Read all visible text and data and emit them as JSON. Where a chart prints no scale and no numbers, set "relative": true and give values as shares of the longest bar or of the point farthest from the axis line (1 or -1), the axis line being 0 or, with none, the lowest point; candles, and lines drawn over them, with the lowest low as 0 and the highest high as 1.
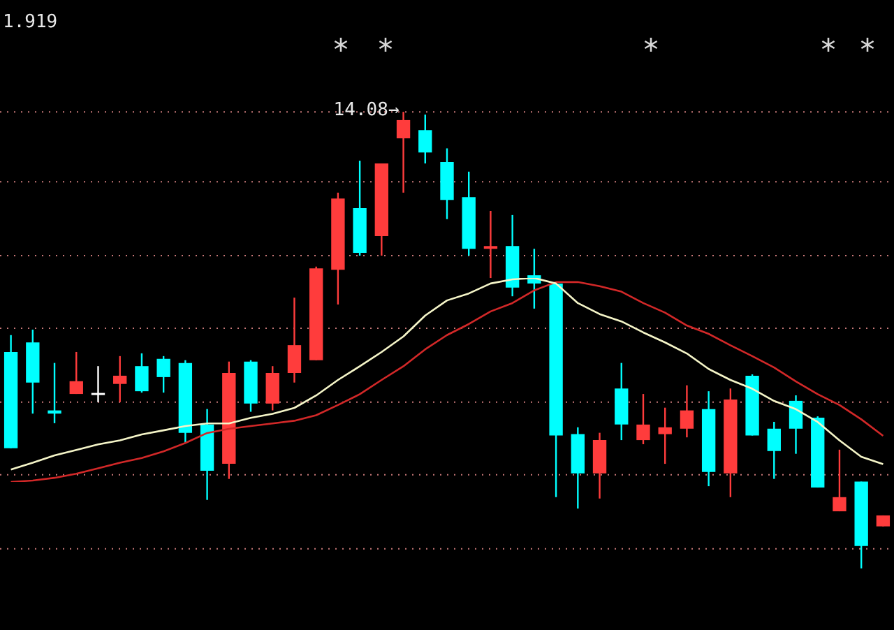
{
  "chart_data": [
    {
      "type": "candlestick",
      "relative": true,
      "ref_lines": [
        {
          "axis": "y",
          "value": 1,
          "color": "#c87878",
          "line_style": "dotted"
        },
        {
          "axis": "y",
          "value": 0.847,
          "color": "#c87878",
          "line_style": "dotted"
        },
        {
          "axis": "y",
          "value": 0.685,
          "color": "#c87878",
          "line_style": "dotted"
        },
        {
          "axis": "y",
          "value": 0.526,
          "color": "#c87878",
          "line_style": "dotted"
        },
        {
          "axis": "y",
          "value": 0.364,
          "color": "#c87878",
          "line_style": "dotted"
        },
        {
          "axis": "y",
          "value": 0.205,
          "color": "#c87878",
          "line_style": "dotted"
        },
        {
          "axis": "y",
          "value": 0.043,
          "color": "#c87878",
          "line_style": "dotted"
        }
      ],
      "categories": [
        null,
        null,
        null,
        null,
        null,
        null,
        null,
        null,
        null,
        null,
        null,
        null,
        null,
        null,
        null,
        null,
        null,
        null,
        null,
        null,
        null,
        null,
        null,
        null,
        null,
        null,
        null,
        null,
        null,
        null,
        null,
        null,
        null,
        null,
        null,
        null,
        null,
        null,
        null,
        null,
        null
      ],
      "ohlc": [
        [
          0.474,
          0.511,
          0.263,
          0.263
        ],
        [
          0.495,
          0.523,
          0.339,
          0.407
        ],
        [
          0.346,
          0.45,
          0.318,
          0.339
        ],
        [
          0.382,
          0.474,
          0.382,
          0.41
        ],
        [
          0.382,
          0.443,
          0.364,
          0.382
        ],
        [
          0.404,
          0.465,
          0.364,
          0.422
        ],
        [
          0.443,
          0.471,
          0.385,
          0.388
        ],
        [
          0.459,
          0.465,
          0.385,
          0.419
        ],
        [
          0.45,
          0.456,
          0.275,
          0.297
        ],
        [
          0.315,
          0.349,
          0.15,
          0.214
        ],
        [
          0.229,
          0.453,
          0.196,
          0.428
        ],
        [
          0.453,
          0.456,
          0.343,
          0.361
        ],
        [
          0.361,
          0.443,
          0.346,
          0.428
        ],
        [
          0.428,
          0.593,
          0.407,
          0.489
        ],
        [
          0.456,
          0.661,
          0.456,
          0.657
        ],
        [
          0.654,
          0.823,
          0.578,
          0.81
        ],
        [
          0.789,
          0.893,
          0.685,
          0.691
        ],
        [
          0.728,
          0.887,
          0.685,
          0.887
        ],
        [
          0.942,
          1,
          0.823,
          0.982
        ],
        [
          0.96,
          0.994,
          0.887,
          0.911
        ],
        [
          0.89,
          0.92,
          0.765,
          0.807
        ],
        [
          0.813,
          0.869,
          0.685,
          0.7
        ],
        [
          0.7,
          0.783,
          0.636,
          0.706
        ],
        [
          0.706,
          0.774,
          0.596,
          0.615
        ],
        [
          0.642,
          0.7,
          0.569,
          0.624
        ],
        [
          0.624,
          0.624,
          0.156,
          0.291
        ],
        [
          0.294,
          0.309,
          0.131,
          0.208
        ],
        [
          0.208,
          0.297,
          0.153,
          0.281
        ],
        [
          0.394,
          0.45,
          0.281,
          0.315
        ],
        [
          0.281,
          0.382,
          0.272,
          0.315
        ],
        [
          0.294,
          0.352,
          0.229,
          0.309
        ],
        [
          0.306,
          0.401,
          0.287,
          0.346
        ],
        [
          0.349,
          0.388,
          0.18,
          0.211
        ],
        [
          0.208,
          0.394,
          0.156,
          0.37
        ],
        [
          0.422,
          0.425,
          0.291,
          0.291
        ],
        [
          0.306,
          0.321,
          0.196,
          0.257
        ],
        [
          0.367,
          0.379,
          0.251,
          0.306
        ],
        [
          0.33,
          0.333,
          0.177,
          0.177
        ],
        [
          0.125,
          0.26,
          0.125,
          0.156
        ],
        [
          0.19,
          0.19,
          0,
          0.049
        ],
        [
          0.092,
          0.116,
          0.092,
          0.116
        ]
      ],
      "colors": [
        "#00ffff",
        "#00ffff",
        "#00ffff",
        "#ff3c3c",
        "#ffffff",
        "#ff3c3c",
        "#00ffff",
        "#00ffff",
        "#00ffff",
        "#00ffff",
        "#ff3c3c",
        "#00ffff",
        "#ff3c3c",
        "#ff3c3c",
        "#ff3c3c",
        "#ff3c3c",
        "#00ffff",
        "#ff3c3c",
        "#ff3c3c",
        "#00ffff",
        "#00ffff",
        "#00ffff",
        "#ff3c3c",
        "#00ffff",
        "#00ffff",
        "#00ffff",
        "#00ffff",
        "#ff3c3c",
        "#00ffff",
        "#ff3c3c",
        "#ff3c3c",
        "#ff3c3c",
        "#00ffff",
        "#ff3c3c",
        "#00ffff",
        "#00ffff",
        "#00ffff",
        "#00ffff",
        "#ff3c3c",
        "#00ffff",
        "#ff3c3c"
      ],
      "annotations": [
        "1.919",
        "14.08→"
      ]
    },
    {
      "type": "line",
      "relative": true,
      "categories": [
        null,
        null,
        null,
        null,
        null,
        null,
        null,
        null,
        null,
        null,
        null,
        null,
        null,
        null,
        null,
        null,
        null,
        null,
        null,
        null,
        null,
        null,
        null,
        null,
        null,
        null,
        null,
        null,
        null,
        null,
        null,
        null,
        null,
        null,
        null,
        null,
        null,
        null,
        null,
        null,
        null
      ],
      "series": [
        {
          "color": "#f5f5c8",
          "values": [
            0.061,
            0.094,
            0.13,
            0.157,
            0.184,
            0.204,
            0.233,
            0.253,
            0.274,
            0.287,
            0.287,
            0.314,
            0.334,
            0.363,
            0.424,
            0.5,
            0.567,
            0.637,
            0.713,
            0.816,
            0.89,
            0.924,
            0.973,
            0.993,
            1,
            0.973,
            0.877,
            0.823,
            0.787,
            0.733,
            0.684,
            0.63,
            0.554,
            0.5,
            0.457,
            0.397,
            0.357,
            0.294,
            0.204,
            0.123,
            0.087
          ]
        },
        {
          "color": "#d22828",
          "values": [
            0,
            0.007,
            0.02,
            0.04,
            0.067,
            0.094,
            0.117,
            0.15,
            0.191,
            0.24,
            0.26,
            0.274,
            0.287,
            0.3,
            0.327,
            0.377,
            0.43,
            0.5,
            0.567,
            0.65,
            0.72,
            0.774,
            0.836,
            0.877,
            0.939,
            0.98,
            0.98,
            0.96,
            0.933,
            0.877,
            0.83,
            0.767,
            0.726,
            0.67,
            0.617,
            0.561,
            0.493,
            0.43,
            0.377,
            0.307,
            0.226
          ]
        }
      ]
    }
  ]
}
